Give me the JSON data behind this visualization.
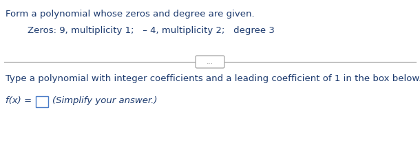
{
  "title_text": "Form a polynomial whose zeros and degree are given.",
  "zeros_line": "Zeros: 9, multiplicity 1;   – 4, multiplicity 2;   degree 3",
  "instruction_text": "Type a polynomial with integer coefficients and a leading coefficient of 1 in the box below.",
  "fx_label": "f(x) = ",
  "simplify_text": "(Simplify your answer.)",
  "dots_text": "...",
  "bg_color": "#ffffff",
  "text_color": "#1c3a6e",
  "separator_color": "#999999",
  "box_edge_color": "#4a7cc7",
  "title_fontsize": 9.5,
  "zeros_fontsize": 9.5,
  "instruction_fontsize": 9.5,
  "fx_fontsize": 9.5,
  "simplify_fontsize": 9.5,
  "dots_fontsize": 7.5
}
